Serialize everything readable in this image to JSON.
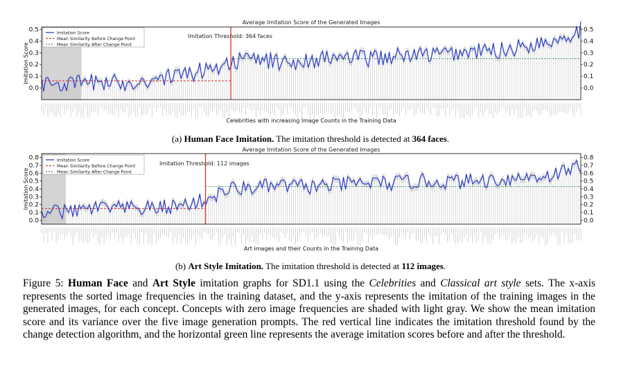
{
  "charts": [
    {
      "title": "Average Imitation Score of the Generated Images",
      "ylabel": "Imitation Score",
      "xlabel": "Celebrities with increasing Image Counts in the Training Data",
      "yticks": [
        "0.0",
        "0.1",
        "0.2",
        "0.3",
        "0.4",
        "0.5"
      ],
      "legend": [
        "Imitation Score",
        "Mean Similarity Before Change Point",
        "Mean Similarity After Change Point"
      ],
      "threshold_label": "Imitation Threshold: 364 faces",
      "colors": {
        "line": "#2233cc",
        "before": "#cc3333",
        "after": "#2e8b57",
        "threshold": "#e03030",
        "shade": "#d4d4d4"
      }
    },
    {
      "title": "Average Imitation Score of the Generated Images",
      "ylabel": "Imitation Score",
      "xlabel": "Art images and their Counts in the Training Data",
      "yticks": [
        "0.0",
        "0.1",
        "0.2",
        "0.3",
        "0.4",
        "0.5",
        "0.6",
        "0.7",
        "0.8"
      ],
      "legend": [
        "Imitation Score",
        "Mean Similarity Before Change Point",
        "Mean Similarity After Change Point"
      ],
      "threshold_label": "Imitation Threshold: 112 images",
      "colors": {
        "line": "#2233cc",
        "before": "#cc3333",
        "after": "#2e8b57",
        "threshold": "#e03030",
        "shade": "#d4d4d4"
      }
    }
  ],
  "chart_data": [
    {
      "type": "line",
      "title": "Average Imitation Score of the Generated Images",
      "xlabel": "Celebrities with increasing Image Counts in the Training Data",
      "ylabel": "Imitation Score",
      "ylim": [
        -0.1,
        0.52
      ],
      "x_fraction_range": [
        0,
        1
      ],
      "zero_frequency_shaded_fraction": 0.074,
      "threshold_fraction": 0.351,
      "mean_before": 0.06,
      "mean_after": 0.25,
      "series": [
        {
          "name": "Imitation Score",
          "x_fraction": [
            0,
            0.05,
            0.1,
            0.15,
            0.2,
            0.25,
            0.3,
            0.35,
            0.4,
            0.45,
            0.5,
            0.55,
            0.6,
            0.65,
            0.7,
            0.75,
            0.8,
            0.85,
            0.9,
            0.95,
            1.0
          ],
          "values": [
            0.04,
            0.03,
            0.05,
            0.04,
            0.07,
            0.1,
            0.15,
            0.22,
            0.25,
            0.21,
            0.24,
            0.26,
            0.25,
            0.27,
            0.28,
            0.29,
            0.31,
            0.32,
            0.36,
            0.41,
            0.5
          ]
        }
      ]
    },
    {
      "type": "line",
      "title": "Average Imitation Score of the Generated Images",
      "xlabel": "Art images and their Counts in the Training Data",
      "ylabel": "Imitation Score",
      "ylim": [
        -0.05,
        0.85
      ],
      "x_fraction_range": [
        0,
        1
      ],
      "zero_frequency_shaded_fraction": 0.045,
      "threshold_fraction": 0.304,
      "mean_before": 0.15,
      "mean_after": 0.43,
      "series": [
        {
          "name": "Imitation Score",
          "x_fraction": [
            0,
            0.05,
            0.1,
            0.15,
            0.2,
            0.25,
            0.3,
            0.35,
            0.4,
            0.45,
            0.5,
            0.55,
            0.6,
            0.65,
            0.7,
            0.75,
            0.8,
            0.85,
            0.9,
            0.95,
            1.0
          ],
          "values": [
            0.12,
            0.1,
            0.16,
            0.15,
            0.15,
            0.18,
            0.25,
            0.4,
            0.42,
            0.44,
            0.43,
            0.45,
            0.48,
            0.47,
            0.5,
            0.49,
            0.5,
            0.52,
            0.55,
            0.58,
            0.7
          ]
        }
      ]
    }
  ],
  "captions": {
    "a_prefix": "(a) ",
    "a_bold": "Human Face Imitation.",
    "a_text": " The imitation threshold is detected at ",
    "a_value": "364 faces",
    "a_end": ".",
    "b_prefix": "(b) ",
    "b_bold": "Art Style Imitation.",
    "b_text": " The imitation threshold is detected at ",
    "b_value": "112 images",
    "b_end": "."
  },
  "figure_caption": {
    "t1": "Figure 5: ",
    "b1": "Human Face",
    "t2": " and ",
    "b2": "Art Style",
    "t3": " imitation graphs for SD1.1 using the ",
    "i1": "Celebrities",
    "t4": " and ",
    "i2": "Classical art style",
    "t5": " sets. The x-axis represents the sorted image frequencies in the training dataset, and the y-axis represents the imitation of the training images in the generated images, for each concept. Concepts with zero image frequencies are shaded with light gray. We show the mean imitation score and its variance over the five image generation prompts. The red vertical line indicates the imitation threshold found by the change detection algorithm, and the horizontal green line represents the average imitation scores before and after the threshold."
  }
}
